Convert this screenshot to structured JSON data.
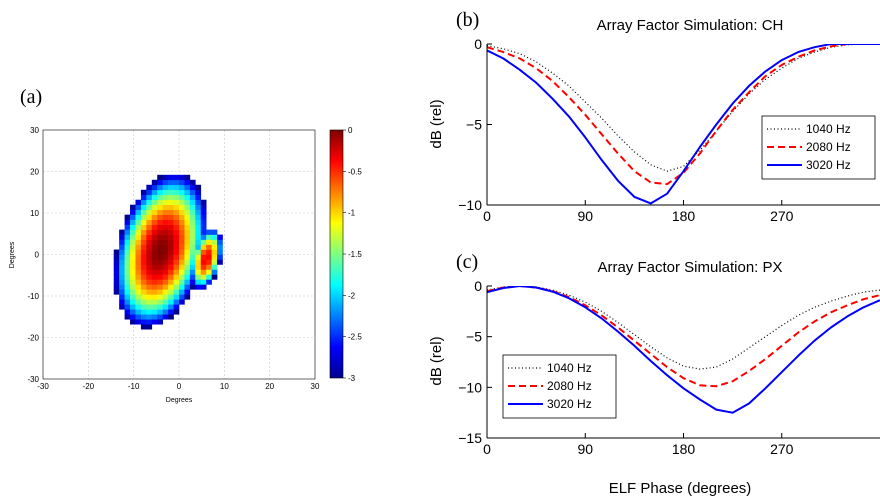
{
  "chart_data": [
    {
      "panel": "(a)",
      "type": "heatmap",
      "title": "",
      "xlabel": "Degrees",
      "ylabel": "Degrees",
      "xlim": [
        -30,
        30
      ],
      "ylim": [
        -30,
        30
      ],
      "xticks": [
        "-30",
        "-20",
        "-10",
        "0",
        "10",
        "20",
        "30"
      ],
      "yticks": [
        "30",
        "20",
        "10",
        "0",
        "-10",
        "-20",
        "-30"
      ],
      "grid": true,
      "colorbar": {
        "range": [
          -3,
          0
        ],
        "ticks": [
          "0",
          "-0.5",
          "-1",
          "-1.5",
          "-2",
          "-2.5",
          "-3"
        ]
      },
      "blobs": [
        {
          "cx": -4,
          "cy": 1,
          "rx": 9.6,
          "ry": 19,
          "rotation_deg": -13,
          "peak": 0
        },
        {
          "cx": 6,
          "cy": -1,
          "rx": 3.2,
          "ry": 7.6,
          "rotation_deg": -13,
          "peak": -0.3
        }
      ]
    },
    {
      "panel": "(b)",
      "type": "line",
      "title": "Array Factor Simulation: CH",
      "xlabel": "",
      "ylabel": "dB (rel)",
      "xlim": [
        0,
        360
      ],
      "ylim": [
        -10,
        0
      ],
      "xticks": [
        "0",
        "90",
        "180",
        "270"
      ],
      "yticks": [
        "0",
        "-5",
        "-10"
      ],
      "legend": "right",
      "x": [
        0,
        15,
        30,
        45,
        60,
        75,
        90,
        105,
        120,
        135,
        150,
        165,
        180,
        195,
        210,
        225,
        240,
        255,
        270,
        285,
        300,
        315,
        330,
        345,
        360
      ],
      "series": [
        {
          "name": "1040 Hz",
          "style": "dotted",
          "color": "#000000",
          "values": [
            -0.1,
            -0.3,
            -0.6,
            -1.1,
            -1.8,
            -2.6,
            -3.6,
            -4.6,
            -5.7,
            -6.7,
            -7.5,
            -7.9,
            -7.6,
            -6.6,
            -5.4,
            -4.2,
            -3.1,
            -2.2,
            -1.5,
            -0.9,
            -0.5,
            -0.2,
            -0.05,
            0,
            0
          ]
        },
        {
          "name": "2080 Hz",
          "style": "dashed",
          "color": "#ff0000",
          "values": [
            -0.2,
            -0.5,
            -0.9,
            -1.5,
            -2.3,
            -3.3,
            -4.4,
            -5.6,
            -6.8,
            -7.9,
            -8.6,
            -8.7,
            -8.0,
            -6.8,
            -5.4,
            -4.1,
            -3.0,
            -2.0,
            -1.3,
            -0.8,
            -0.4,
            -0.15,
            0,
            0,
            0
          ]
        },
        {
          "name": "3020 Hz",
          "style": "solid",
          "color": "#0000ff",
          "values": [
            -0.4,
            -0.9,
            -1.6,
            -2.4,
            -3.4,
            -4.5,
            -5.8,
            -7.2,
            -8.5,
            -9.5,
            -9.9,
            -9.3,
            -7.9,
            -6.4,
            -5.0,
            -3.7,
            -2.6,
            -1.7,
            -1.0,
            -0.5,
            -0.2,
            0,
            0,
            0,
            0
          ]
        }
      ]
    },
    {
      "panel": "(c)",
      "type": "line",
      "title": "Array Factor Simulation: PX",
      "xlabel": "ELF Phase (degrees)",
      "ylabel": "dB (rel)",
      "xlim": [
        0,
        360
      ],
      "ylim": [
        -15,
        0
      ],
      "xticks": [
        "0",
        "90",
        "180",
        "270"
      ],
      "yticks": [
        "0",
        "-5",
        "-10",
        "-15"
      ],
      "legend": "left",
      "x": [
        0,
        15,
        30,
        45,
        60,
        75,
        90,
        105,
        120,
        135,
        150,
        165,
        180,
        195,
        210,
        225,
        240,
        255,
        270,
        285,
        300,
        315,
        330,
        345,
        360
      ],
      "series": [
        {
          "name": "1040 Hz",
          "style": "dotted",
          "color": "#000000",
          "values": [
            -0.4,
            -0.1,
            0,
            -0.1,
            -0.4,
            -0.9,
            -1.6,
            -2.5,
            -3.6,
            -4.8,
            -6.0,
            -7.1,
            -7.9,
            -8.2,
            -8.0,
            -7.2,
            -6.1,
            -5.0,
            -3.9,
            -2.9,
            -2.1,
            -1.5,
            -1.0,
            -0.6,
            -0.4
          ]
        },
        {
          "name": "2080 Hz",
          "style": "dashed",
          "color": "#ff0000",
          "values": [
            -0.5,
            -0.15,
            0,
            -0.15,
            -0.5,
            -1.1,
            -1.9,
            -2.9,
            -4.1,
            -5.4,
            -6.7,
            -8.0,
            -9.1,
            -9.8,
            -9.9,
            -9.4,
            -8.4,
            -7.2,
            -5.9,
            -4.6,
            -3.5,
            -2.6,
            -1.9,
            -1.3,
            -0.9
          ]
        },
        {
          "name": "3020 Hz",
          "style": "solid",
          "color": "#0000ff",
          "values": [
            -0.6,
            -0.2,
            0,
            -0.15,
            -0.55,
            -1.2,
            -2.1,
            -3.2,
            -4.5,
            -5.9,
            -7.4,
            -8.8,
            -10.1,
            -11.2,
            -12.2,
            -12.5,
            -11.6,
            -10.1,
            -8.5,
            -6.9,
            -5.4,
            -4.1,
            -3.0,
            -2.1,
            -1.4
          ]
        }
      ]
    }
  ]
}
